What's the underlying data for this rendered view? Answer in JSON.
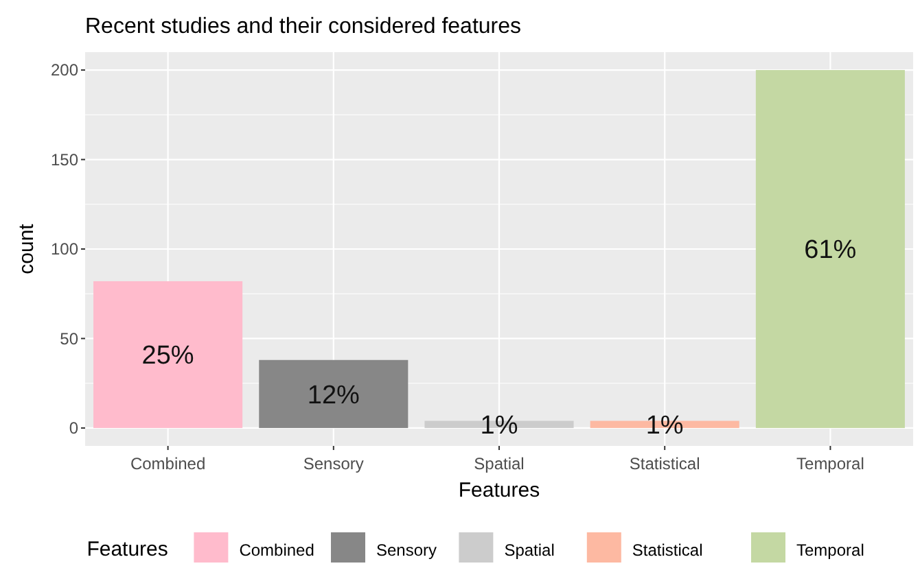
{
  "chart_data": {
    "type": "bar",
    "title": "Recent studies and their considered features",
    "xlabel": "Features",
    "ylabel": "count",
    "legend_title": "Features",
    "categories": [
      "Combined",
      "Sensory",
      "Spatial",
      "Statistical",
      "Temporal"
    ],
    "series": [
      {
        "name": "Combined",
        "color": "#ffbbcc",
        "values": [
          82,
          null,
          null,
          null,
          null
        ]
      },
      {
        "name": "Sensory",
        "color": "#878787",
        "values": [
          null,
          38,
          null,
          null,
          null
        ]
      },
      {
        "name": "Spatial",
        "color": "#cccccc",
        "values": [
          null,
          null,
          4,
          null,
          null
        ]
      },
      {
        "name": "Statistical",
        "color": "#fdb9a2",
        "values": [
          null,
          null,
          null,
          4,
          null
        ]
      },
      {
        "name": "Temporal",
        "color": "#c4d8a3",
        "values": [
          null,
          null,
          null,
          null,
          200
        ]
      }
    ],
    "annotations": [
      "25%",
      "12%",
      "1%",
      "1%",
      "61%"
    ],
    "ylim": [
      -10,
      210
    ],
    "yticks": [
      0,
      50,
      100,
      150,
      200
    ],
    "grid": true,
    "legend": "bottom"
  }
}
